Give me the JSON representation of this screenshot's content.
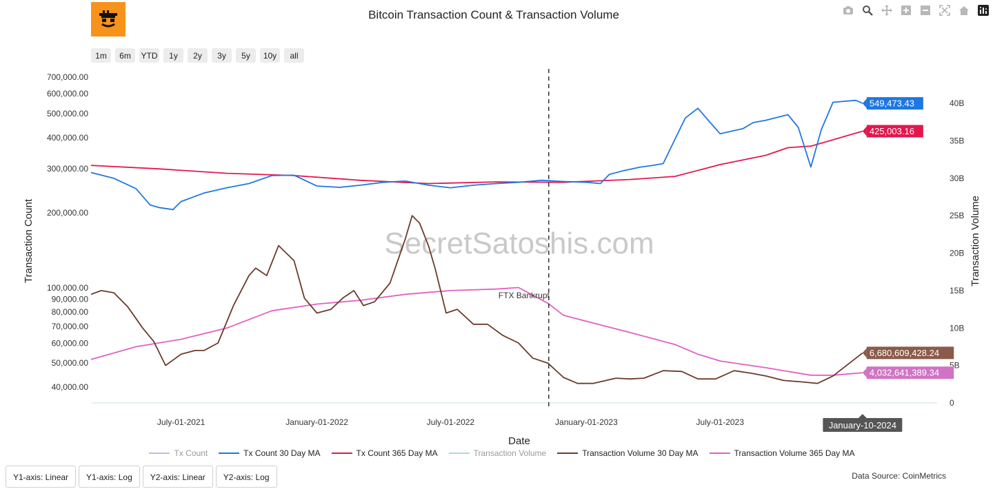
{
  "header": {
    "title": "Bitcoin Transaction Count & Transaction Volume"
  },
  "toolbar": {
    "icons": [
      "camera-icon",
      "zoom-icon",
      "pan-icon",
      "zoom-in-icon",
      "zoom-out-icon",
      "autoscale-icon",
      "reset-axes-icon",
      "plotly-logo-icon"
    ]
  },
  "range_buttons": [
    "1m",
    "6m",
    "YTD",
    "1y",
    "2y",
    "3y",
    "5y",
    "10y",
    "all"
  ],
  "watermark": "SecretSatoshis.com",
  "annotation": {
    "label": "FTX Bankrupt",
    "date": "2022-11-11"
  },
  "hover_date": "January-10-2024",
  "last_values": {
    "tx_30d": "549,473.43",
    "tx_365d": "425,003.16",
    "vol_30d": "6,680,609,428.24",
    "vol_365d": "4,032,641,389.34"
  },
  "bottom_tabs": [
    "Y1-axis: Linear",
    "Y1-axis: Log",
    "Y2-axis: Linear",
    "Y2-axis: Log"
  ],
  "data_source": "Data Source: CoinMetrics",
  "colors": {
    "tx_count": "#b27fd6",
    "tx_30d": "#1f77e0",
    "tx_365d": "#e3174d",
    "vol": "#8fc7cc",
    "vol_30d": "#6b3a2a",
    "vol_365d": "#e060c2"
  },
  "chart_data": {
    "type": "line",
    "xlabel": "Date",
    "y1label": "Transaction Count",
    "y2label": "Transaction Volume",
    "y1_scale": "log",
    "y2_scale": "linear",
    "y1_ticks": [
      "40,000.00",
      "50,000.00",
      "60,000.00",
      "70,000.00",
      "80,000.00",
      "90,000.00",
      "100,000.00",
      "200,000.00",
      "300,000.00",
      "400,000.00",
      "500,000.00",
      "600,000.00",
      "700,000.00"
    ],
    "y1_tick_values": [
      40000,
      50000,
      60000,
      70000,
      80000,
      90000,
      100000,
      200000,
      300000,
      400000,
      500000,
      600000,
      700000
    ],
    "y2_ticks": [
      "0",
      "5B",
      "10B",
      "15B",
      "20B",
      "25B",
      "30B",
      "35B",
      "40B"
    ],
    "y2_tick_values": [
      0,
      5,
      10,
      15,
      20,
      25,
      30,
      35,
      40
    ],
    "y2_unit": "B",
    "xlim": [
      "2021-03-01",
      "2024-04-20"
    ],
    "x_ticks": [
      "July-01-2021",
      "January-01-2022",
      "July-01-2022",
      "January-01-2023",
      "July-01-2023",
      "January-10-2024"
    ],
    "x_tick_dates": [
      "2021-07-01",
      "2022-01-01",
      "2022-07-01",
      "2023-01-01",
      "2023-07-01",
      "2024-01-10"
    ],
    "legend": [
      "Tx Count",
      "Tx Count 30 Day MA",
      "Tx Count 365 Day MA",
      "Transaction Volume",
      "Transaction Volume 30 Day MA",
      "Transaction Volume 365 Day MA"
    ],
    "series": [
      {
        "name": "Tx Count 30 Day MA",
        "axis": "y1",
        "x": [
          "2021-03-01",
          "2021-04-01",
          "2021-05-01",
          "2021-05-20",
          "2021-06-01",
          "2021-06-20",
          "2021-07-01",
          "2021-08-01",
          "2021-09-01",
          "2021-10-01",
          "2021-11-01",
          "2021-12-01",
          "2022-01-01",
          "2022-02-01",
          "2022-03-01",
          "2022-04-01",
          "2022-05-01",
          "2022-06-01",
          "2022-07-01",
          "2022-08-01",
          "2022-09-01",
          "2022-10-01",
          "2022-11-01",
          "2022-12-01",
          "2023-01-01",
          "2023-01-20",
          "2023-02-01",
          "2023-02-20",
          "2023-03-15",
          "2023-04-01",
          "2023-04-15",
          "2023-05-01",
          "2023-05-15",
          "2023-06-01",
          "2023-06-15",
          "2023-07-01",
          "2023-08-01",
          "2023-08-15",
          "2023-09-01",
          "2023-10-01",
          "2023-10-15",
          "2023-11-01",
          "2023-11-15",
          "2023-12-01",
          "2024-01-01",
          "2024-01-10"
        ],
        "y": [
          290000,
          275000,
          250000,
          215000,
          210000,
          206000,
          222000,
          240000,
          252000,
          262000,
          282000,
          283000,
          256000,
          253000,
          258000,
          265000,
          268000,
          258000,
          252000,
          258000,
          262000,
          265000,
          270000,
          267000,
          265000,
          262000,
          285000,
          295000,
          305000,
          310000,
          315000,
          395000,
          480000,
          525000,
          470000,
          415000,
          435000,
          460000,
          470000,
          495000,
          440000,
          305000,
          430000,
          555000,
          565000,
          549473
        ]
      },
      {
        "name": "Tx Count 365 Day MA",
        "axis": "y1",
        "x": [
          "2021-03-01",
          "2021-06-01",
          "2021-09-01",
          "2021-12-01",
          "2022-03-01",
          "2022-06-01",
          "2022-09-01",
          "2022-12-01",
          "2023-03-01",
          "2023-05-01",
          "2023-07-01",
          "2023-09-01",
          "2023-10-01",
          "2023-11-01",
          "2024-01-10"
        ],
        "y": [
          310000,
          300000,
          288000,
          282000,
          270000,
          262000,
          266000,
          265000,
          272000,
          280000,
          312000,
          340000,
          365000,
          370000,
          425003
        ]
      },
      {
        "name": "Transaction Volume 30 Day MA",
        "axis": "y2",
        "x": [
          "2021-03-01",
          "2021-03-15",
          "2021-04-01",
          "2021-04-20",
          "2021-05-10",
          "2021-05-25",
          "2021-06-10",
          "2021-07-01",
          "2021-07-20",
          "2021-08-01",
          "2021-08-20",
          "2021-09-10",
          "2021-10-01",
          "2021-10-10",
          "2021-10-25",
          "2021-11-10",
          "2021-12-01",
          "2021-12-15",
          "2022-01-01",
          "2022-01-20",
          "2022-02-05",
          "2022-02-20",
          "2022-03-05",
          "2022-03-20",
          "2022-04-10",
          "2022-05-01",
          "2022-05-10",
          "2022-05-20",
          "2022-06-01",
          "2022-06-10",
          "2022-06-25",
          "2022-07-10",
          "2022-08-01",
          "2022-08-20",
          "2022-09-10",
          "2022-10-01",
          "2022-10-20",
          "2022-11-10",
          "2022-12-01",
          "2022-12-20",
          "2023-01-10",
          "2023-02-10",
          "2023-03-01",
          "2023-03-20",
          "2023-04-15",
          "2023-05-10",
          "2023-06-01",
          "2023-06-25",
          "2023-07-20",
          "2023-08-10",
          "2023-09-01",
          "2023-09-25",
          "2023-10-20",
          "2023-11-10",
          "2023-12-01",
          "2024-01-10"
        ],
        "y": [
          14.5,
          15,
          14.7,
          12.8,
          10,
          8.2,
          5,
          6.5,
          7,
          7,
          8,
          13,
          17,
          18,
          17,
          21,
          19,
          14,
          12,
          12.5,
          14,
          15,
          13,
          13.5,
          16,
          22,
          25,
          24,
          21,
          18,
          12,
          12.5,
          10.5,
          10.5,
          9,
          8,
          6,
          5.3,
          3.4,
          2.6,
          2.6,
          3.3,
          3.2,
          3.3,
          4.3,
          4.2,
          3.2,
          3.2,
          4.3,
          4,
          3.6,
          3,
          2.8,
          2.6,
          3.6,
          6.68
        ]
      },
      {
        "name": "Transaction Volume 365 Day MA",
        "axis": "y2",
        "x": [
          "2021-03-01",
          "2021-05-01",
          "2021-07-01",
          "2021-09-01",
          "2021-11-01",
          "2022-01-01",
          "2022-03-01",
          "2022-05-01",
          "2022-07-01",
          "2022-09-01",
          "2022-10-01",
          "2022-11-10",
          "2022-12-01",
          "2023-01-01",
          "2023-03-01",
          "2023-05-01",
          "2023-06-01",
          "2023-07-01",
          "2023-09-01",
          "2023-11-01",
          "2023-12-01",
          "2024-01-10"
        ],
        "y": [
          5.8,
          7.5,
          8.5,
          10,
          12.3,
          13.2,
          13.7,
          14.5,
          15,
          15.2,
          15.4,
          13.3,
          11.7,
          10.9,
          9.4,
          7.8,
          6.5,
          5.6,
          4.7,
          3.7,
          3.7,
          4.03
        ]
      }
    ]
  }
}
